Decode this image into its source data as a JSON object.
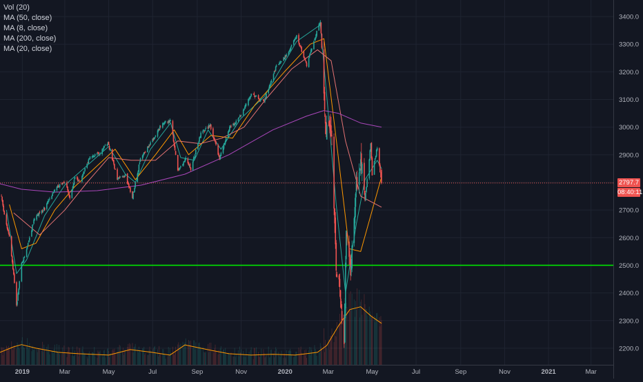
{
  "legend": [
    "Vol (20)",
    "MA (50, close)",
    "MA (8, close)",
    "MA (200, close)",
    "MA (20, close)"
  ],
  "price_label": "2797.7",
  "countdown_label": "08:40:11",
  "colors": {
    "background": "#131722",
    "grid": "#1f2431",
    "axis_text": "#b2b5be",
    "up_candle": "#26a69a",
    "down_candle": "#ef5350",
    "ma_50": "#e57373",
    "ma_8": "#26a69a",
    "ma_200": "#ab47bc",
    "ma_20": "#ff9800",
    "vol_ma": "#ff9800",
    "support_line": "#00e600",
    "current_price_line": "#ef5350"
  },
  "chart_data": {
    "type": "candlestick",
    "title": "",
    "x_tick_labels": [
      "2019",
      "Mar",
      "May",
      "Jul",
      "Sep",
      "Nov",
      "2020",
      "Mar",
      "May",
      "Jul",
      "Sep",
      "Nov",
      "2021",
      "Mar"
    ],
    "y_tick_labels": [
      "3400.0",
      "3300.0",
      "3200.0",
      "3100.0",
      "3000.0",
      "2900.0",
      "2800.0",
      "2700.0",
      "2600.0",
      "2500.0",
      "2400.0",
      "2300.0",
      "2200.0"
    ],
    "y_ticks": [
      3400,
      3300,
      3200,
      3100,
      3000,
      2900,
      2800,
      2700,
      2600,
      2500,
      2400,
      2300,
      2200
    ],
    "ylim": [
      2140,
      3460
    ],
    "x_range": [
      "2018-12-01",
      "2021-04-01"
    ],
    "grid": true,
    "last_price": 2797.7,
    "support_level": 2500,
    "price_path": [
      [
        "2018-12-01",
        2790
      ],
      [
        "2018-12-07",
        2680
      ],
      [
        "2018-12-14",
        2600
      ],
      [
        "2018-12-20",
        2470
      ],
      [
        "2018-12-24",
        2351
      ],
      [
        "2018-12-31",
        2506
      ],
      [
        "2019-01-04",
        2532
      ],
      [
        "2019-01-18",
        2670
      ],
      [
        "2019-02-01",
        2706
      ],
      [
        "2019-02-15",
        2775
      ],
      [
        "2019-03-01",
        2803
      ],
      [
        "2019-03-08",
        2743
      ],
      [
        "2019-03-15",
        2822
      ],
      [
        "2019-03-22",
        2800
      ],
      [
        "2019-04-05",
        2892
      ],
      [
        "2019-04-19",
        2905
      ],
      [
        "2019-04-30",
        2945
      ],
      [
        "2019-05-13",
        2811
      ],
      [
        "2019-05-24",
        2826
      ],
      [
        "2019-06-03",
        2744
      ],
      [
        "2019-06-14",
        2886
      ],
      [
        "2019-06-28",
        2941
      ],
      [
        "2019-07-15",
        3014
      ],
      [
        "2019-07-26",
        3025
      ],
      [
        "2019-08-05",
        2844
      ],
      [
        "2019-08-16",
        2888
      ],
      [
        "2019-08-23",
        2847
      ],
      [
        "2019-09-06",
        2978
      ],
      [
        "2019-09-19",
        3006
      ],
      [
        "2019-10-02",
        2887
      ],
      [
        "2019-10-15",
        2995
      ],
      [
        "2019-10-31",
        3037
      ],
      [
        "2019-11-15",
        3120
      ],
      [
        "2019-12-03",
        3093
      ],
      [
        "2019-12-20",
        3221
      ],
      [
        "2020-01-02",
        3257
      ],
      [
        "2020-01-17",
        3329
      ],
      [
        "2020-01-31",
        3225
      ],
      [
        "2020-02-19",
        3386
      ],
      [
        "2020-02-27",
        2978
      ],
      [
        "2020-03-06",
        2972
      ],
      [
        "2020-03-12",
        2480
      ],
      [
        "2020-03-18",
        2398
      ],
      [
        "2020-03-23",
        2237
      ],
      [
        "2020-03-26",
        2630
      ],
      [
        "2020-04-01",
        2470
      ],
      [
        "2020-04-09",
        2789
      ],
      [
        "2020-04-17",
        2874
      ],
      [
        "2020-04-21",
        2736
      ],
      [
        "2020-04-29",
        2939
      ],
      [
        "2020-05-01",
        2830
      ],
      [
        "2020-05-08",
        2929
      ],
      [
        "2020-05-13",
        2820
      ],
      [
        "2020-05-14",
        2797.7
      ]
    ],
    "series": [
      {
        "name": "MA (8, close)",
        "values": [
          [
            "2018-12-10",
            2700
          ],
          [
            "2018-12-24",
            2470
          ],
          [
            "2019-01-07",
            2520
          ],
          [
            "2019-02-01",
            2680
          ],
          [
            "2019-03-01",
            2790
          ],
          [
            "2019-04-05",
            2870
          ],
          [
            "2019-05-01",
            2930
          ],
          [
            "2019-05-24",
            2830
          ],
          [
            "2019-06-07",
            2800
          ],
          [
            "2019-06-28",
            2920
          ],
          [
            "2019-07-26",
            3015
          ],
          [
            "2019-08-09",
            2890
          ],
          [
            "2019-08-28",
            2880
          ],
          [
            "2019-09-16",
            2990
          ],
          [
            "2019-10-04",
            2920
          ],
          [
            "2019-10-31",
            3030
          ],
          [
            "2019-12-03",
            3110
          ],
          [
            "2020-01-17",
            3310
          ],
          [
            "2020-02-19",
            3370
          ],
          [
            "2020-02-28",
            3110
          ],
          [
            "2020-03-12",
            2720
          ],
          [
            "2020-03-25",
            2400
          ],
          [
            "2020-04-09",
            2650
          ],
          [
            "2020-04-21",
            2810
          ],
          [
            "2020-05-08",
            2880
          ],
          [
            "2020-05-14",
            2850
          ]
        ]
      },
      {
        "name": "MA (20, close)",
        "values": [
          [
            "2018-12-14",
            2720
          ],
          [
            "2018-12-31",
            2560
          ],
          [
            "2019-01-20",
            2580
          ],
          [
            "2019-02-15",
            2700
          ],
          [
            "2019-03-15",
            2785
          ],
          [
            "2019-04-15",
            2860
          ],
          [
            "2019-05-10",
            2920
          ],
          [
            "2019-06-07",
            2810
          ],
          [
            "2019-07-05",
            2900
          ],
          [
            "2019-07-31",
            2990
          ],
          [
            "2019-08-20",
            2900
          ],
          [
            "2019-09-20",
            2970
          ],
          [
            "2019-10-20",
            2960
          ],
          [
            "2019-11-20",
            3080
          ],
          [
            "2019-12-31",
            3200
          ],
          [
            "2020-02-05",
            3300
          ],
          [
            "2020-02-24",
            3320
          ],
          [
            "2020-03-10",
            3000
          ],
          [
            "2020-03-30",
            2560
          ],
          [
            "2020-04-15",
            2550
          ],
          [
            "2020-05-14",
            2820
          ]
        ]
      },
      {
        "name": "MA (50, close)",
        "values": [
          [
            "2018-12-20",
            2690
          ],
          [
            "2019-01-25",
            2610
          ],
          [
            "2019-03-01",
            2700
          ],
          [
            "2019-04-01",
            2800
          ],
          [
            "2019-05-01",
            2890
          ],
          [
            "2019-06-01",
            2880
          ],
          [
            "2019-07-05",
            2880
          ],
          [
            "2019-08-05",
            2950
          ],
          [
            "2019-09-05",
            2940
          ],
          [
            "2019-10-05",
            2960
          ],
          [
            "2019-11-05",
            3000
          ],
          [
            "2019-12-05",
            3100
          ],
          [
            "2020-01-10",
            3210
          ],
          [
            "2020-02-15",
            3280
          ],
          [
            "2020-03-05",
            3240
          ],
          [
            "2020-03-25",
            2950
          ],
          [
            "2020-04-15",
            2750
          ],
          [
            "2020-05-14",
            2710
          ]
        ]
      },
      {
        "name": "MA (200, close)",
        "values": [
          [
            "2018-12-01",
            2795
          ],
          [
            "2018-12-31",
            2775
          ],
          [
            "2019-02-15",
            2765
          ],
          [
            "2019-04-15",
            2770
          ],
          [
            "2019-06-15",
            2790
          ],
          [
            "2019-08-15",
            2830
          ],
          [
            "2019-10-15",
            2900
          ],
          [
            "2019-12-15",
            2990
          ],
          [
            "2020-01-31",
            3040
          ],
          [
            "2020-02-24",
            3060
          ],
          [
            "2020-03-15",
            3050
          ],
          [
            "2020-04-15",
            3015
          ],
          [
            "2020-05-14",
            3000
          ]
        ]
      },
      {
        "name": "Vol (20)",
        "values": [
          [
            "2018-12-01",
            2185
          ],
          [
            "2018-12-20",
            2205
          ],
          [
            "2018-12-31",
            2213
          ],
          [
            "2019-01-20",
            2200
          ],
          [
            "2019-02-20",
            2185
          ],
          [
            "2019-03-20",
            2180
          ],
          [
            "2019-05-01",
            2175
          ],
          [
            "2019-05-31",
            2195
          ],
          [
            "2019-06-30",
            2185
          ],
          [
            "2019-07-25",
            2175
          ],
          [
            "2019-08-15",
            2212
          ],
          [
            "2019-09-15",
            2195
          ],
          [
            "2019-10-15",
            2180
          ],
          [
            "2019-11-15",
            2175
          ],
          [
            "2019-12-15",
            2178
          ],
          [
            "2020-01-15",
            2175
          ],
          [
            "2020-02-15",
            2185
          ],
          [
            "2020-02-28",
            2210
          ],
          [
            "2020-03-15",
            2280
          ],
          [
            "2020-03-31",
            2340
          ],
          [
            "2020-04-15",
            2350
          ],
          [
            "2020-04-30",
            2315
          ],
          [
            "2020-05-14",
            2290
          ]
        ]
      }
    ]
  }
}
